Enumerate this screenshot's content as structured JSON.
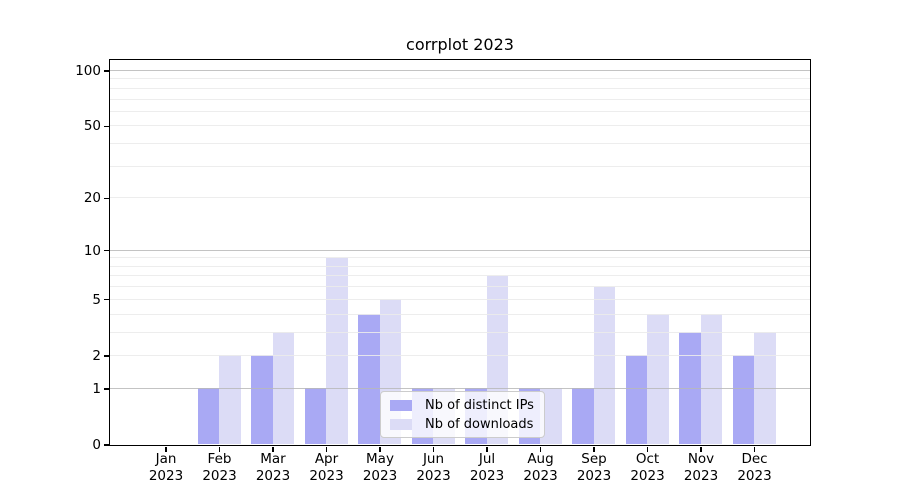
{
  "chart_data": {
    "type": "bar",
    "title": "corrplot 2023",
    "scale": "log1p (position proportional to log10(1+value), 0 at baseline)",
    "categories": [
      "Jan",
      "Feb",
      "Mar",
      "Apr",
      "May",
      "Jun",
      "Jul",
      "Aug",
      "Sep",
      "Oct",
      "Nov",
      "Dec"
    ],
    "category_year": "2023",
    "series": [
      {
        "name": "Nb of distinct IPs",
        "color": "#a9a9f4",
        "values": [
          0,
          1,
          2,
          1,
          4,
          1,
          1,
          1,
          1,
          2,
          3,
          2
        ]
      },
      {
        "name": "Nb of downloads",
        "color": "#dcdcf6",
        "values": [
          0,
          2,
          3,
          9,
          5,
          1,
          7,
          1,
          6,
          4,
          4,
          3
        ]
      }
    ],
    "y_ticks": [
      0,
      1,
      2,
      5,
      10,
      20,
      50,
      100
    ],
    "ylim": [
      0,
      115
    ],
    "grid": {
      "major_values": [
        1,
        10,
        100
      ],
      "minor_values": [
        2,
        3,
        4,
        5,
        6,
        7,
        8,
        9,
        20,
        30,
        40,
        50,
        60,
        70,
        80,
        90
      ],
      "major_color": "#b9b9b9",
      "minor_color": "#ebebeb"
    },
    "legend_position": "lower center",
    "axis_color": "#000000",
    "background_color": "#ffffff"
  }
}
